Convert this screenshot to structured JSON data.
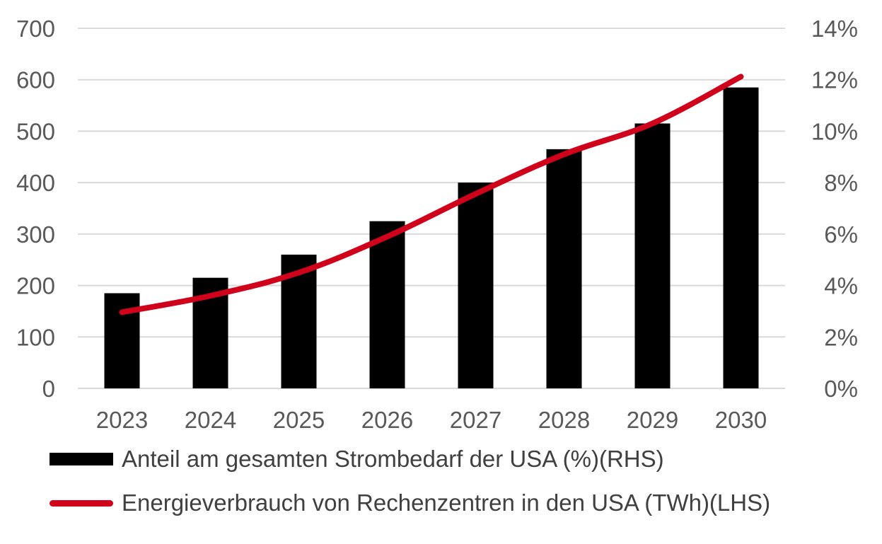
{
  "chart_data": {
    "type": "bar",
    "categories": [
      "2023",
      "2024",
      "2025",
      "2026",
      "2027",
      "2028",
      "2029",
      "2030"
    ],
    "series": [
      {
        "name": "Anteil am gesamten Strombedarf der USA (%)(RHS)",
        "kind": "bar",
        "axis": "right",
        "values": [
          3.7,
          4.3,
          5.2,
          6.5,
          8.0,
          9.3,
          10.3,
          11.7
        ],
        "color": "#000000"
      },
      {
        "name": "Energieverbrauch von Rechenzentren in den USA (TWh)(LHS)",
        "kind": "line",
        "axis": "left",
        "values": [
          148,
          180,
          225,
          295,
          378,
          455,
          515,
          606
        ],
        "color": "#d0021b"
      }
    ],
    "left_axis": {
      "min": 0,
      "max": 700,
      "step": 100,
      "tick_labels": [
        "0",
        "100",
        "200",
        "300",
        "400",
        "500",
        "600",
        "700"
      ]
    },
    "right_axis": {
      "min": 0,
      "max": 14,
      "step": 2,
      "tick_labels": [
        "0%",
        "2%",
        "4%",
        "6%",
        "8%",
        "10%",
        "12%",
        "14%"
      ]
    },
    "grid": true,
    "legend_position": "bottom"
  }
}
